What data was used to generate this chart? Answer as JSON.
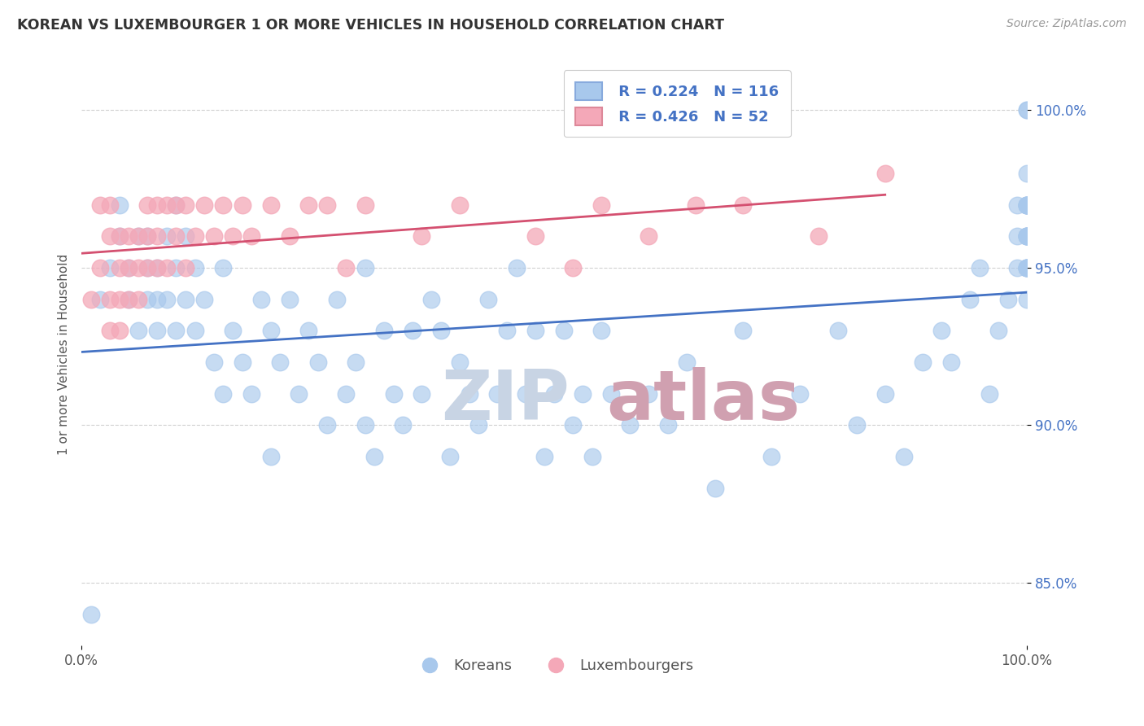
{
  "title": "KOREAN VS LUXEMBOURGER 1 OR MORE VEHICLES IN HOUSEHOLD CORRELATION CHART",
  "source_text": "Source: ZipAtlas.com",
  "ylabel": "1 or more Vehicles in Household",
  "xlim": [
    0,
    100
  ],
  "ylim": [
    83.0,
    101.5
  ],
  "ytick_labels": [
    "85.0%",
    "90.0%",
    "95.0%",
    "100.0%"
  ],
  "ytick_values": [
    85,
    90,
    95,
    100
  ],
  "legend_koreans_R": "0.224",
  "legend_koreans_N": "116",
  "legend_luxembourgers_R": "0.426",
  "legend_luxembourgers_N": "52",
  "legend_label_koreans": "Koreans",
  "legend_label_luxembourgers": "Luxembourgers",
  "blue_color": "#A8C8EC",
  "pink_color": "#F4A8B8",
  "blue_line_color": "#4472C4",
  "pink_line_color": "#D45070",
  "title_color": "#333333",
  "watermark_color_zip": "#C8D4E4",
  "watermark_color_atlas": "#D0A0B0",
  "legend_text_color": "#4472C4",
  "korean_x": [
    1,
    2,
    3,
    4,
    4,
    5,
    5,
    6,
    6,
    7,
    7,
    7,
    8,
    8,
    8,
    9,
    9,
    10,
    10,
    10,
    11,
    11,
    12,
    12,
    13,
    14,
    15,
    15,
    16,
    17,
    18,
    19,
    20,
    20,
    21,
    22,
    23,
    24,
    25,
    26,
    27,
    28,
    29,
    30,
    30,
    31,
    32,
    33,
    34,
    35,
    36,
    37,
    38,
    39,
    40,
    41,
    42,
    43,
    44,
    45,
    46,
    47,
    48,
    49,
    50,
    51,
    52,
    53,
    54,
    55,
    56,
    58,
    60,
    62,
    64,
    67,
    70,
    73,
    76,
    80,
    82,
    85,
    87,
    89,
    91,
    92,
    94,
    95,
    96,
    97,
    98,
    99,
    99,
    99,
    100,
    100,
    100,
    100,
    100,
    100,
    100,
    100,
    100,
    100,
    100,
    100,
    100,
    100,
    100,
    100,
    100,
    100,
    100,
    100,
    100,
    100
  ],
  "korean_y": [
    84,
    94,
    95,
    96,
    97,
    94,
    95,
    93,
    96,
    94,
    95,
    96,
    93,
    94,
    95,
    94,
    96,
    93,
    95,
    97,
    94,
    96,
    93,
    95,
    94,
    92,
    91,
    95,
    93,
    92,
    91,
    94,
    89,
    93,
    92,
    94,
    91,
    93,
    92,
    90,
    94,
    91,
    92,
    90,
    95,
    89,
    93,
    91,
    90,
    93,
    91,
    94,
    93,
    89,
    92,
    91,
    90,
    94,
    91,
    93,
    95,
    91,
    93,
    89,
    91,
    93,
    90,
    91,
    89,
    93,
    91,
    90,
    91,
    90,
    92,
    88,
    93,
    89,
    91,
    93,
    90,
    91,
    89,
    92,
    93,
    92,
    94,
    95,
    91,
    93,
    94,
    95,
    96,
    97,
    94,
    95,
    96,
    97,
    95,
    97,
    96,
    95,
    96,
    98,
    97,
    96,
    95,
    97,
    100,
    96,
    95,
    96,
    97,
    95,
    97,
    100
  ],
  "luxembourger_x": [
    1,
    2,
    2,
    3,
    3,
    3,
    3,
    4,
    4,
    4,
    4,
    5,
    5,
    5,
    6,
    6,
    6,
    7,
    7,
    7,
    8,
    8,
    8,
    9,
    9,
    10,
    10,
    11,
    11,
    12,
    13,
    14,
    15,
    16,
    17,
    18,
    20,
    22,
    24,
    26,
    28,
    30,
    36,
    40,
    48,
    52,
    55,
    60,
    65,
    70,
    78,
    85
  ],
  "luxembourger_y": [
    94,
    95,
    97,
    93,
    94,
    96,
    97,
    93,
    94,
    95,
    96,
    94,
    95,
    96,
    94,
    95,
    96,
    95,
    96,
    97,
    95,
    96,
    97,
    95,
    97,
    96,
    97,
    95,
    97,
    96,
    97,
    96,
    97,
    96,
    97,
    96,
    97,
    96,
    97,
    97,
    95,
    97,
    96,
    97,
    96,
    95,
    97,
    96,
    97,
    97,
    96,
    98
  ]
}
